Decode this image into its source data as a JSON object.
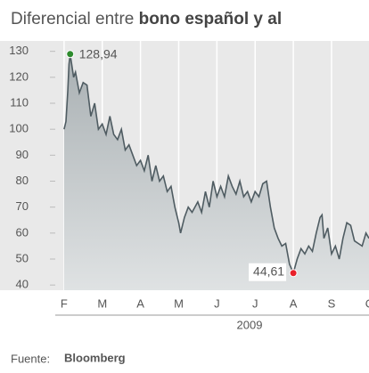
{
  "chart_data": {
    "type": "area",
    "title": "Diferencial entre ",
    "title_bold": "bono español y al",
    "x_axis_label": "2009",
    "source_label": "Fuente:",
    "source": "Bloomberg",
    "xlim": [
      -0.23,
      7.98
    ],
    "xticks": [
      {
        "value": 0,
        "label": "F"
      },
      {
        "value": 1,
        "label": "M"
      },
      {
        "value": 2,
        "label": "A"
      },
      {
        "value": 3,
        "label": "M"
      },
      {
        "value": 4,
        "label": "J"
      },
      {
        "value": 5,
        "label": "J"
      },
      {
        "value": 6,
        "label": "A"
      },
      {
        "value": 7,
        "label": "S"
      },
      {
        "value": 8,
        "label": "O"
      }
    ],
    "ylim": [
      38,
      134
    ],
    "yticks": [
      40,
      50,
      60,
      70,
      80,
      90,
      100,
      110,
      120,
      130
    ],
    "grid": true,
    "x": [
      0,
      0.05,
      0.1,
      0.13,
      0.16,
      0.25,
      0.3,
      0.4,
      0.5,
      0.6,
      0.7,
      0.8,
      0.9,
      1.0,
      1.1,
      1.2,
      1.3,
      1.4,
      1.5,
      1.6,
      1.7,
      1.8,
      1.9,
      2.0,
      2.1,
      2.2,
      2.3,
      2.4,
      2.5,
      2.6,
      2.7,
      2.8,
      2.9,
      3.0,
      3.05,
      3.15,
      3.25,
      3.35,
      3.5,
      3.6,
      3.7,
      3.8,
      3.9,
      4.0,
      4.1,
      4.2,
      4.3,
      4.4,
      4.5,
      4.6,
      4.7,
      4.8,
      4.9,
      5.0,
      5.1,
      5.2,
      5.3,
      5.4,
      5.5,
      5.6,
      5.7,
      5.8,
      5.9,
      6.0,
      6.1,
      6.2,
      6.3,
      6.4,
      6.5,
      6.6,
      6.7,
      6.75,
      6.8,
      6.9,
      7.0,
      7.1,
      7.2,
      7.3,
      7.4,
      7.5,
      7.6,
      7.7,
      7.8,
      7.9,
      7.98
    ],
    "series": [
      {
        "color": "#4f5c62",
        "values": [
          100,
          103,
          115,
          125,
          128.94,
          120,
          122,
          114,
          118,
          117,
          105,
          110,
          100,
          102,
          98,
          105,
          98,
          96,
          100,
          92,
          94,
          90,
          86,
          88,
          84,
          90,
          80,
          86,
          80,
          82,
          76,
          78,
          70,
          64,
          60,
          66,
          70,
          68,
          72,
          68,
          76,
          70,
          80,
          74,
          78,
          74,
          82,
          78,
          75,
          80,
          74,
          76,
          72,
          76,
          74,
          79,
          80,
          70,
          62,
          58,
          55,
          56,
          48,
          44.61,
          50,
          54,
          52,
          55,
          53,
          60,
          66,
          67,
          58,
          62,
          52,
          55,
          50,
          58,
          64,
          63,
          57,
          56,
          55,
          60,
          58
        ]
      }
    ],
    "max": {
      "x": 0.16,
      "value": 128.94,
      "label": "128,94",
      "color": "#2e8b2e"
    },
    "min": {
      "x": 6.0,
      "value": 44.61,
      "label": "44,61",
      "color": "#e8202a"
    }
  }
}
